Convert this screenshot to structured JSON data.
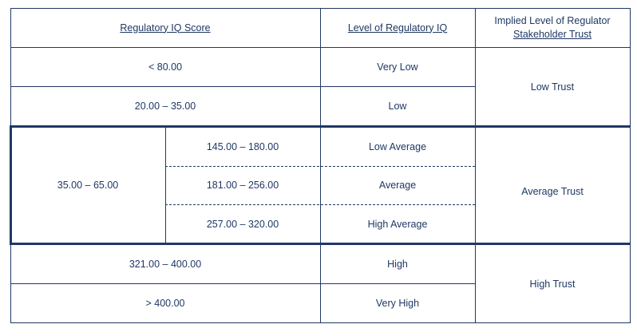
{
  "headers": {
    "score": "Regulatory IQ Score",
    "level": "Level of Regulatory IQ",
    "trust_line1": "Implied Level of Regulator",
    "trust_line2": "Stakeholder Trust"
  },
  "rows": [
    {
      "score": "< 80.00",
      "level": "Very Low"
    },
    {
      "score": "20.00 – 35.00",
      "level": "Low"
    },
    {
      "score": "145.00 – 180.00",
      "level": "Low Average"
    },
    {
      "score": "181.00 – 256.00",
      "level": "Average"
    },
    {
      "score": "257.00 – 320.00",
      "level": "High Average"
    },
    {
      "score": "321.00 – 400.00",
      "level": "High"
    },
    {
      "score": "> 400.00",
      "level": "Very High"
    }
  ],
  "average_group_score": "35.00 – 65.00",
  "trust": {
    "low": "Low Trust",
    "average": "Average Trust",
    "high": "High Trust"
  }
}
